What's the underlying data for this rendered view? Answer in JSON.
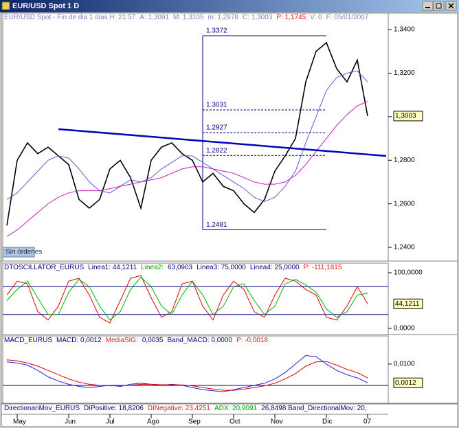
{
  "window": {
    "title": "EUR/USD Spot 1 D",
    "button": "Sin órdenes"
  },
  "chart_data": [
    {
      "type": "line",
      "header": [
        {
          "text": "EUR/USD Spot - Fin de dia 1 dias  H: 21:57",
          "color": "#8080c0"
        },
        {
          "text": "A: 1,3091",
          "color": "#8080c0"
        },
        {
          "text": "M: 1,3105",
          "color": "#8080c0"
        },
        {
          "text": "m: 1,2978",
          "color": "#8080c0"
        },
        {
          "text": "C: 1,3003",
          "color": "#8080c0"
        },
        {
          "text": "P: 1,1745",
          "color": "#e02020"
        },
        {
          "text": "V: 0",
          "color": "#8080c0"
        },
        {
          "text": "F: 05/01/2007",
          "color": "#8080c0"
        }
      ],
      "categories": [
        null,
        "May",
        null,
        null,
        null,
        null,
        "Jun",
        null,
        null,
        null,
        "Jul",
        null,
        null,
        null,
        "Ago",
        null,
        null,
        null,
        "Sep",
        null,
        null,
        null,
        "Oct",
        null,
        null,
        null,
        "Nov",
        null,
        null,
        null,
        null,
        "Dic",
        null,
        null,
        null,
        "07"
      ],
      "series": [
        {
          "color": "#000000",
          "width": 1.6,
          "values": [
            1.25,
            1.28,
            1.288,
            1.283,
            1.286,
            1.282,
            1.278,
            1.262,
            1.258,
            1.262,
            1.276,
            1.28,
            1.272,
            1.258,
            1.28,
            1.286,
            1.288,
            1.283,
            1.28,
            1.27,
            1.274,
            1.268,
            1.266,
            1.26,
            1.256,
            1.262,
            1.275,
            1.282,
            1.29,
            1.316,
            1.33,
            1.334,
            1.322,
            1.316,
            1.326,
            1.3003
          ]
        },
        {
          "color": "#6060d0",
          "width": 1,
          "values": [
            1.262,
            1.265,
            1.27,
            1.275,
            1.28,
            1.282,
            1.281,
            1.276,
            1.27,
            1.266,
            1.265,
            1.268,
            1.271,
            1.27,
            1.272,
            1.276,
            1.279,
            1.282,
            1.282,
            1.279,
            1.276,
            1.273,
            1.27,
            1.267,
            1.263,
            1.261,
            1.263,
            1.268,
            1.275,
            1.288,
            1.3,
            1.312,
            1.318,
            1.32,
            1.321,
            1.316
          ]
        },
        {
          "color": "#c020c0",
          "width": 1,
          "values": [
            1.245,
            1.248,
            1.252,
            1.256,
            1.26,
            1.263,
            1.265,
            1.266,
            1.266,
            1.266,
            1.267,
            1.268,
            1.269,
            1.27,
            1.271,
            1.272,
            1.274,
            1.276,
            1.277,
            1.277,
            1.276,
            1.275,
            1.274,
            1.272,
            1.27,
            1.269,
            1.269,
            1.27,
            1.273,
            1.278,
            1.284,
            1.29,
            1.296,
            1.301,
            1.305,
            1.307
          ]
        }
      ],
      "fib_levels": [
        1.3372,
        1.3031,
        1.2927,
        1.2822,
        1.2481
      ],
      "fib_color": "#000080",
      "ylim": [
        1.2337,
        1.3476
      ],
      "yticks": [
        {
          "value": 1.34,
          "label": "1,3400"
        },
        {
          "value": 1.32,
          "label": "1,3200"
        },
        {
          "value": 1.3,
          "label": "1,3000"
        },
        {
          "value": 1.28,
          "label": "1,2800"
        },
        {
          "value": 1.26,
          "label": "1,2600"
        },
        {
          "value": 1.24,
          "label": "1,2400"
        }
      ],
      "last_value": {
        "value": 1.3003,
        "label": "1,3003"
      }
    },
    {
      "type": "line",
      "header": [
        {
          "text": "DTOSCILLATOR_EURUS",
          "color": "#000080"
        },
        {
          "text": "Linea1: 44,1211",
          "color": "#000080"
        },
        {
          "text": "Linea2:",
          "color": "#00a000"
        },
        {
          "text": "63,0903",
          "color": "#000080"
        },
        {
          "text": "Linea3: 75,0000",
          "color": "#000080"
        },
        {
          "text": "Linea4: 25,0000",
          "color": "#000080"
        },
        {
          "text": "P: -111,1815",
          "color": "#e02020"
        }
      ],
      "series": [
        {
          "color": "#e00000",
          "width": 1,
          "values": [
            60,
            85,
            80,
            30,
            15,
            40,
            85,
            90,
            60,
            20,
            10,
            50,
            90,
            95,
            55,
            20,
            30,
            80,
            85,
            40,
            15,
            60,
            85,
            70,
            30,
            20,
            60,
            90,
            85,
            70,
            60,
            20,
            15,
            40,
            75,
            44.1211
          ]
        },
        {
          "color": "#00b000",
          "width": 1,
          "values": [
            50,
            70,
            85,
            55,
            25,
            25,
            65,
            88,
            75,
            40,
            15,
            30,
            70,
            92,
            75,
            40,
            25,
            60,
            85,
            60,
            25,
            40,
            75,
            80,
            50,
            25,
            40,
            80,
            88,
            78,
            65,
            35,
            20,
            30,
            60,
            63.0903
          ]
        }
      ],
      "levels": [
        75,
        25
      ],
      "level_color": "#000080",
      "ylim": [
        -11.1,
        117.3
      ],
      "yticks": [
        {
          "value": 100,
          "label": "100,0000"
        },
        {
          "value": 0,
          "label": "0,0000"
        }
      ],
      "last_value": {
        "value": 44.1211,
        "label": "44,1211"
      }
    },
    {
      "type": "line",
      "header": [
        {
          "text": "MACD_EURUS",
          "color": "#000080"
        },
        {
          "text": "MACD: 0,0012",
          "color": "#000080"
        },
        {
          "text": "MediaSIG:",
          "color": "#e02020"
        },
        {
          "text": "0,0035",
          "color": "#000080"
        },
        {
          "text": "Band_MACD: 0,0000",
          "color": "#000080"
        },
        {
          "text": "P: -0,0018",
          "color": "#e02020"
        }
      ],
      "series": [
        {
          "color": "#2020e0",
          "width": 1,
          "values": [
            0.011,
            0.0105,
            0.0095,
            0.007,
            0.004,
            0.002,
            0.0005,
            -0.0005,
            -0.001,
            -0.0005,
            0.0,
            -0.0005,
            0.0005,
            0.001,
            0.0005,
            0.0,
            0.0005,
            0.0,
            -0.001,
            -0.002,
            -0.0025,
            -0.003,
            -0.002,
            -0.001,
            0.0,
            0.001,
            0.003,
            0.006,
            0.01,
            0.014,
            0.0135,
            0.01,
            0.007,
            0.005,
            0.0035,
            0.0012
          ]
        },
        {
          "color": "#e00000",
          "width": 1,
          "values": [
            0.012,
            0.0115,
            0.0105,
            0.009,
            0.007,
            0.005,
            0.003,
            0.0015,
            0.0005,
            0.0,
            -0.0002,
            -0.0002,
            0.0,
            0.0005,
            0.0005,
            0.0003,
            0.0003,
            0.0002,
            -0.0002,
            -0.001,
            -0.0017,
            -0.0023,
            -0.0023,
            -0.0018,
            -0.001,
            -0.0002,
            0.001,
            0.003,
            0.0055,
            0.009,
            0.011,
            0.0112,
            0.0095,
            0.0075,
            0.006,
            0.0035
          ]
        }
      ],
      "levels": [
        0
      ],
      "level_color": "#000080",
      "ylim": [
        -0.0084,
        0.0232
      ],
      "yticks": [
        {
          "value": 0.01,
          "label": "0,0100"
        }
      ],
      "last_value": {
        "value": 0.0012,
        "label": "0,0012"
      }
    },
    {
      "type": "header",
      "header": [
        {
          "text": "DirectionanMov_EURUS",
          "color": "#000080"
        },
        {
          "text": "DIPositive: 18,8206",
          "color": "#000080"
        },
        {
          "text": "DINegative: 23,4251",
          "color": "#e02020"
        },
        {
          "text": "ADX: 20,9091",
          "color": "#00a000"
        },
        {
          "text": "26,8498  Band_DirectionalMov: 20,",
          "color": "#000080"
        }
      ]
    }
  ]
}
